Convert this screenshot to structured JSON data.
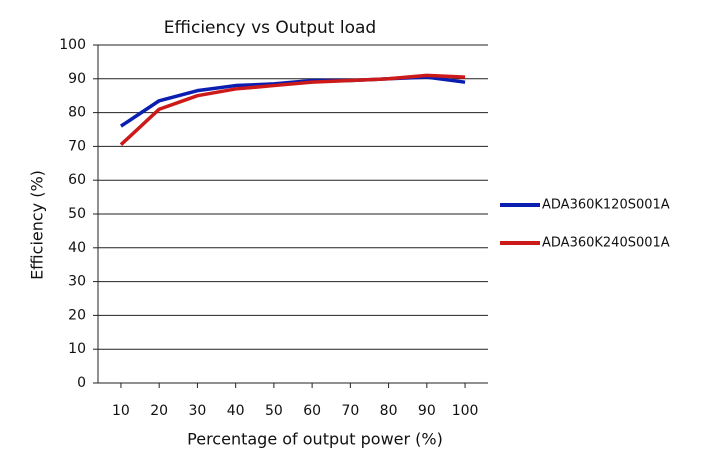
{
  "chart_data": {
    "type": "line",
    "title": "Efficiency vs Output load",
    "x_label": "Percentage of output power (%)",
    "y_label": "Efficiency (%)",
    "x": [
      10,
      20,
      30,
      40,
      50,
      60,
      70,
      80,
      90,
      100
    ],
    "series": [
      {
        "name": "ADA360K120S001A",
        "color": "#0a1eb0",
        "values": [
          76,
          83.5,
          86.5,
          88,
          88.5,
          89.5,
          89.5,
          90,
          90.5,
          89
        ]
      },
      {
        "name": "ADA360K240S001A",
        "color": "#cc1a1a",
        "values": [
          70.5,
          81,
          85,
          87,
          88,
          89,
          89.5,
          90,
          91,
          90.5
        ]
      }
    ],
    "xlim": [
      4,
      106
    ],
    "xticks": [
      10,
      20,
      30,
      40,
      50,
      60,
      70,
      80,
      90,
      100
    ],
    "ylim": [
      0,
      100
    ],
    "yticks": [
      0,
      10,
      20,
      30,
      40,
      50,
      60,
      70,
      80,
      90,
      100
    ],
    "grid": true,
    "legend": "right"
  }
}
